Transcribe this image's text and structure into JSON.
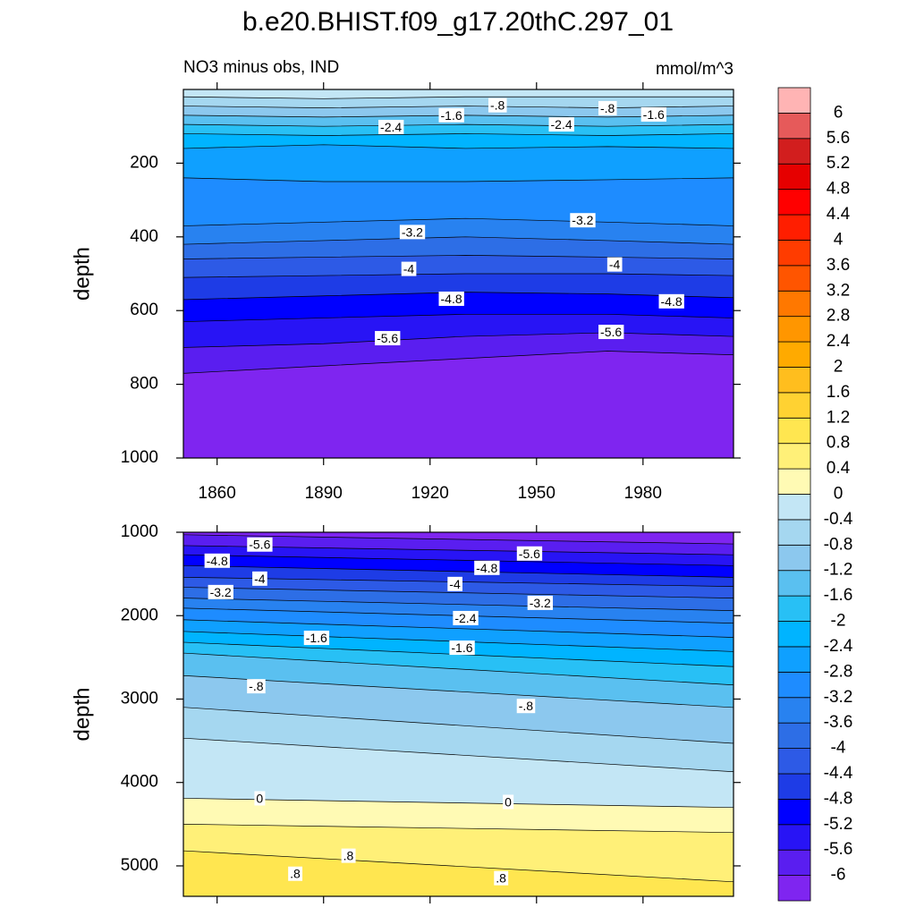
{
  "title": "b.e20.BHIST.f09_g17.20thC.297_01",
  "colorbar": {
    "levels": [
      -6,
      -5.6,
      -5.2,
      -4.8,
      -4.4,
      -4,
      -3.6,
      -3.2,
      -2.8,
      -2.4,
      -2,
      -1.6,
      -1.2,
      -0.8,
      -0.4,
      0,
      0.4,
      0.8,
      1.2,
      1.6,
      2,
      2.4,
      2.8,
      3.2,
      3.6,
      4,
      4.4,
      4.8,
      5.2,
      5.6,
      6
    ],
    "colors": [
      "#7f25f0",
      "#5a1ef0",
      "#2814f5",
      "#0000ff",
      "#1e3ce6",
      "#2d5ae6",
      "#2d6ee6",
      "#2882f0",
      "#1e8cff",
      "#0fa0ff",
      "#00b4ff",
      "#28c0f5",
      "#5ac0f0",
      "#8cc8ee",
      "#a5d7f0",
      "#c3e6f5",
      "#fffab4",
      "#fff078",
      "#ffe650",
      "#ffd232",
      "#ffbe1e",
      "#ffaa00",
      "#ff9600",
      "#ff7800",
      "#ff5500",
      "#ff3c00",
      "#ff1e00",
      "#ff0000",
      "#e60000",
      "#d21e1e",
      "#e65a5a",
      "#ffb4b4"
    ]
  },
  "chart_data": [
    {
      "type": "contour",
      "subtitle_left": "NO3 minus obs, IND",
      "subtitle_right": "mmol/m^3",
      "ylabel": "depth",
      "xlim": [
        1850.5,
        2005.5
      ],
      "xticks": [
        1860,
        1890,
        1920,
        1950,
        1980
      ],
      "x_tick_labels": true,
      "ylim": [
        0,
        1000
      ],
      "yticks": [
        200,
        400,
        600,
        800,
        1000
      ],
      "y_inverted": true,
      "contour_x": [
        1851,
        1890,
        1930,
        1970,
        2005
      ],
      "contours": [
        {
          "level": -0.4,
          "depth": [
            20,
            25,
            20,
            20,
            20
          ]
        },
        {
          "level": -0.8,
          "depth": [
            45,
            50,
            45,
            50,
            45
          ]
        },
        {
          "level": -1.2,
          "depth": [
            70,
            75,
            70,
            75,
            70
          ]
        },
        {
          "level": -1.6,
          "depth": [
            95,
            100,
            95,
            100,
            95
          ]
        },
        {
          "level": -2,
          "depth": [
            120,
            125,
            120,
            125,
            120
          ]
        },
        {
          "level": -2.4,
          "depth": [
            160,
            150,
            160,
            155,
            160
          ]
        },
        {
          "level": -2.8,
          "depth": [
            240,
            250,
            250,
            245,
            240
          ]
        },
        {
          "level": -3.2,
          "depth": [
            370,
            360,
            350,
            360,
            370
          ]
        },
        {
          "level": -3.6,
          "depth": [
            420,
            410,
            400,
            410,
            420
          ]
        },
        {
          "level": -4,
          "depth": [
            460,
            455,
            450,
            455,
            460
          ]
        },
        {
          "level": -4.4,
          "depth": [
            510,
            505,
            500,
            500,
            505
          ]
        },
        {
          "level": -4.8,
          "depth": [
            570,
            560,
            550,
            555,
            565
          ]
        },
        {
          "level": -5.2,
          "depth": [
            630,
            620,
            610,
            610,
            620
          ]
        },
        {
          "level": -5.6,
          "depth": [
            700,
            690,
            670,
            660,
            670
          ]
        },
        {
          "level": -6,
          "depth": [
            770,
            750,
            730,
            710,
            720
          ]
        }
      ],
      "labels": [
        {
          "text": "-2.4",
          "x": 1909,
          "depth": 105
        },
        {
          "text": "-1.6",
          "x": 1926,
          "depth": 73
        },
        {
          "text": "-.8",
          "x": 1939,
          "depth": 46
        },
        {
          "text": "-2.4",
          "x": 1957,
          "depth": 98
        },
        {
          "text": "-.8",
          "x": 1970,
          "depth": 54
        },
        {
          "text": "-1.6",
          "x": 1983,
          "depth": 71
        },
        {
          "text": "-3.2",
          "x": 1915,
          "depth": 390
        },
        {
          "text": "-3.2",
          "x": 1963,
          "depth": 358
        },
        {
          "text": "-4",
          "x": 1914,
          "depth": 490
        },
        {
          "text": "-4",
          "x": 1972,
          "depth": 478
        },
        {
          "text": "-4.8",
          "x": 1926,
          "depth": 571
        },
        {
          "text": "-4.8",
          "x": 1988,
          "depth": 578
        },
        {
          "text": "-5.6",
          "x": 1908,
          "depth": 678
        },
        {
          "text": "-5.6",
          "x": 1971,
          "depth": 661
        }
      ]
    },
    {
      "type": "contour",
      "ylabel": "depth",
      "xlim": [
        1850.5,
        2005.5
      ],
      "xticks": [
        1860,
        1890,
        1920,
        1950,
        1980
      ],
      "x_tick_labels": false,
      "ylim": [
        1000,
        5365
      ],
      "yticks": [
        1000,
        2000,
        3000,
        4000,
        5000
      ],
      "y_inverted": true,
      "contour_x": [
        1851,
        2005
      ],
      "contours": [
        {
          "level": -6,
          "depth": [
            1030,
            1140
          ]
        },
        {
          "level": -5.6,
          "depth": [
            1160,
            1270
          ]
        },
        {
          "level": -5.2,
          "depth": [
            1270,
            1400
          ]
        },
        {
          "level": -4.8,
          "depth": [
            1400,
            1540
          ]
        },
        {
          "level": -4.4,
          "depth": [
            1540,
            1650
          ]
        },
        {
          "level": -4,
          "depth": [
            1660,
            1790
          ]
        },
        {
          "level": -3.6,
          "depth": [
            1790,
            1940
          ]
        },
        {
          "level": -3.2,
          "depth": [
            1910,
            2090
          ]
        },
        {
          "level": -2.8,
          "depth": [
            2050,
            2260
          ]
        },
        {
          "level": -2.4,
          "depth": [
            2190,
            2430
          ]
        },
        {
          "level": -2,
          "depth": [
            2320,
            2610
          ]
        },
        {
          "level": -1.6,
          "depth": [
            2450,
            2830
          ]
        },
        {
          "level": -1.2,
          "depth": [
            2720,
            3100
          ]
        },
        {
          "level": -0.8,
          "depth": [
            3100,
            3530
          ]
        },
        {
          "level": -0.4,
          "depth": [
            3470,
            3870
          ]
        },
        {
          "level": 0,
          "depth": [
            4190,
            4300
          ]
        },
        {
          "level": 0.4,
          "depth": [
            4500,
            4600
          ]
        },
        {
          "level": 0.8,
          "depth": [
            4820,
            5190
          ]
        }
      ],
      "labels": [
        {
          "text": "-5.6",
          "x": 1872,
          "depth": 1161
        },
        {
          "text": "-5.6",
          "x": 1948,
          "depth": 1269
        },
        {
          "text": "-4.8",
          "x": 1860,
          "depth": 1355
        },
        {
          "text": "-4.8",
          "x": 1936,
          "depth": 1441
        },
        {
          "text": "-4",
          "x": 1872,
          "depth": 1570
        },
        {
          "text": "-4",
          "x": 1927,
          "depth": 1634
        },
        {
          "text": "-3.2",
          "x": 1861,
          "depth": 1731
        },
        {
          "text": "-3.2",
          "x": 1951,
          "depth": 1860
        },
        {
          "text": "-2.4",
          "x": 1930,
          "depth": 2043
        },
        {
          "text": "-1.6",
          "x": 1888,
          "depth": 2280
        },
        {
          "text": "-1.6",
          "x": 1929,
          "depth": 2398
        },
        {
          "text": "-.8",
          "x": 1871,
          "depth": 2860
        },
        {
          "text": "-.8",
          "x": 1947,
          "depth": 3097
        },
        {
          "text": "0",
          "x": 1872,
          "depth": 4204
        },
        {
          "text": "0",
          "x": 1942,
          "depth": 4247
        },
        {
          "text": ".8",
          "x": 1897,
          "depth": 4892
        },
        {
          "text": ".8",
          "x": 1882,
          "depth": 5108
        },
        {
          "text": ".8",
          "x": 1940,
          "depth": 5161
        }
      ]
    }
  ]
}
